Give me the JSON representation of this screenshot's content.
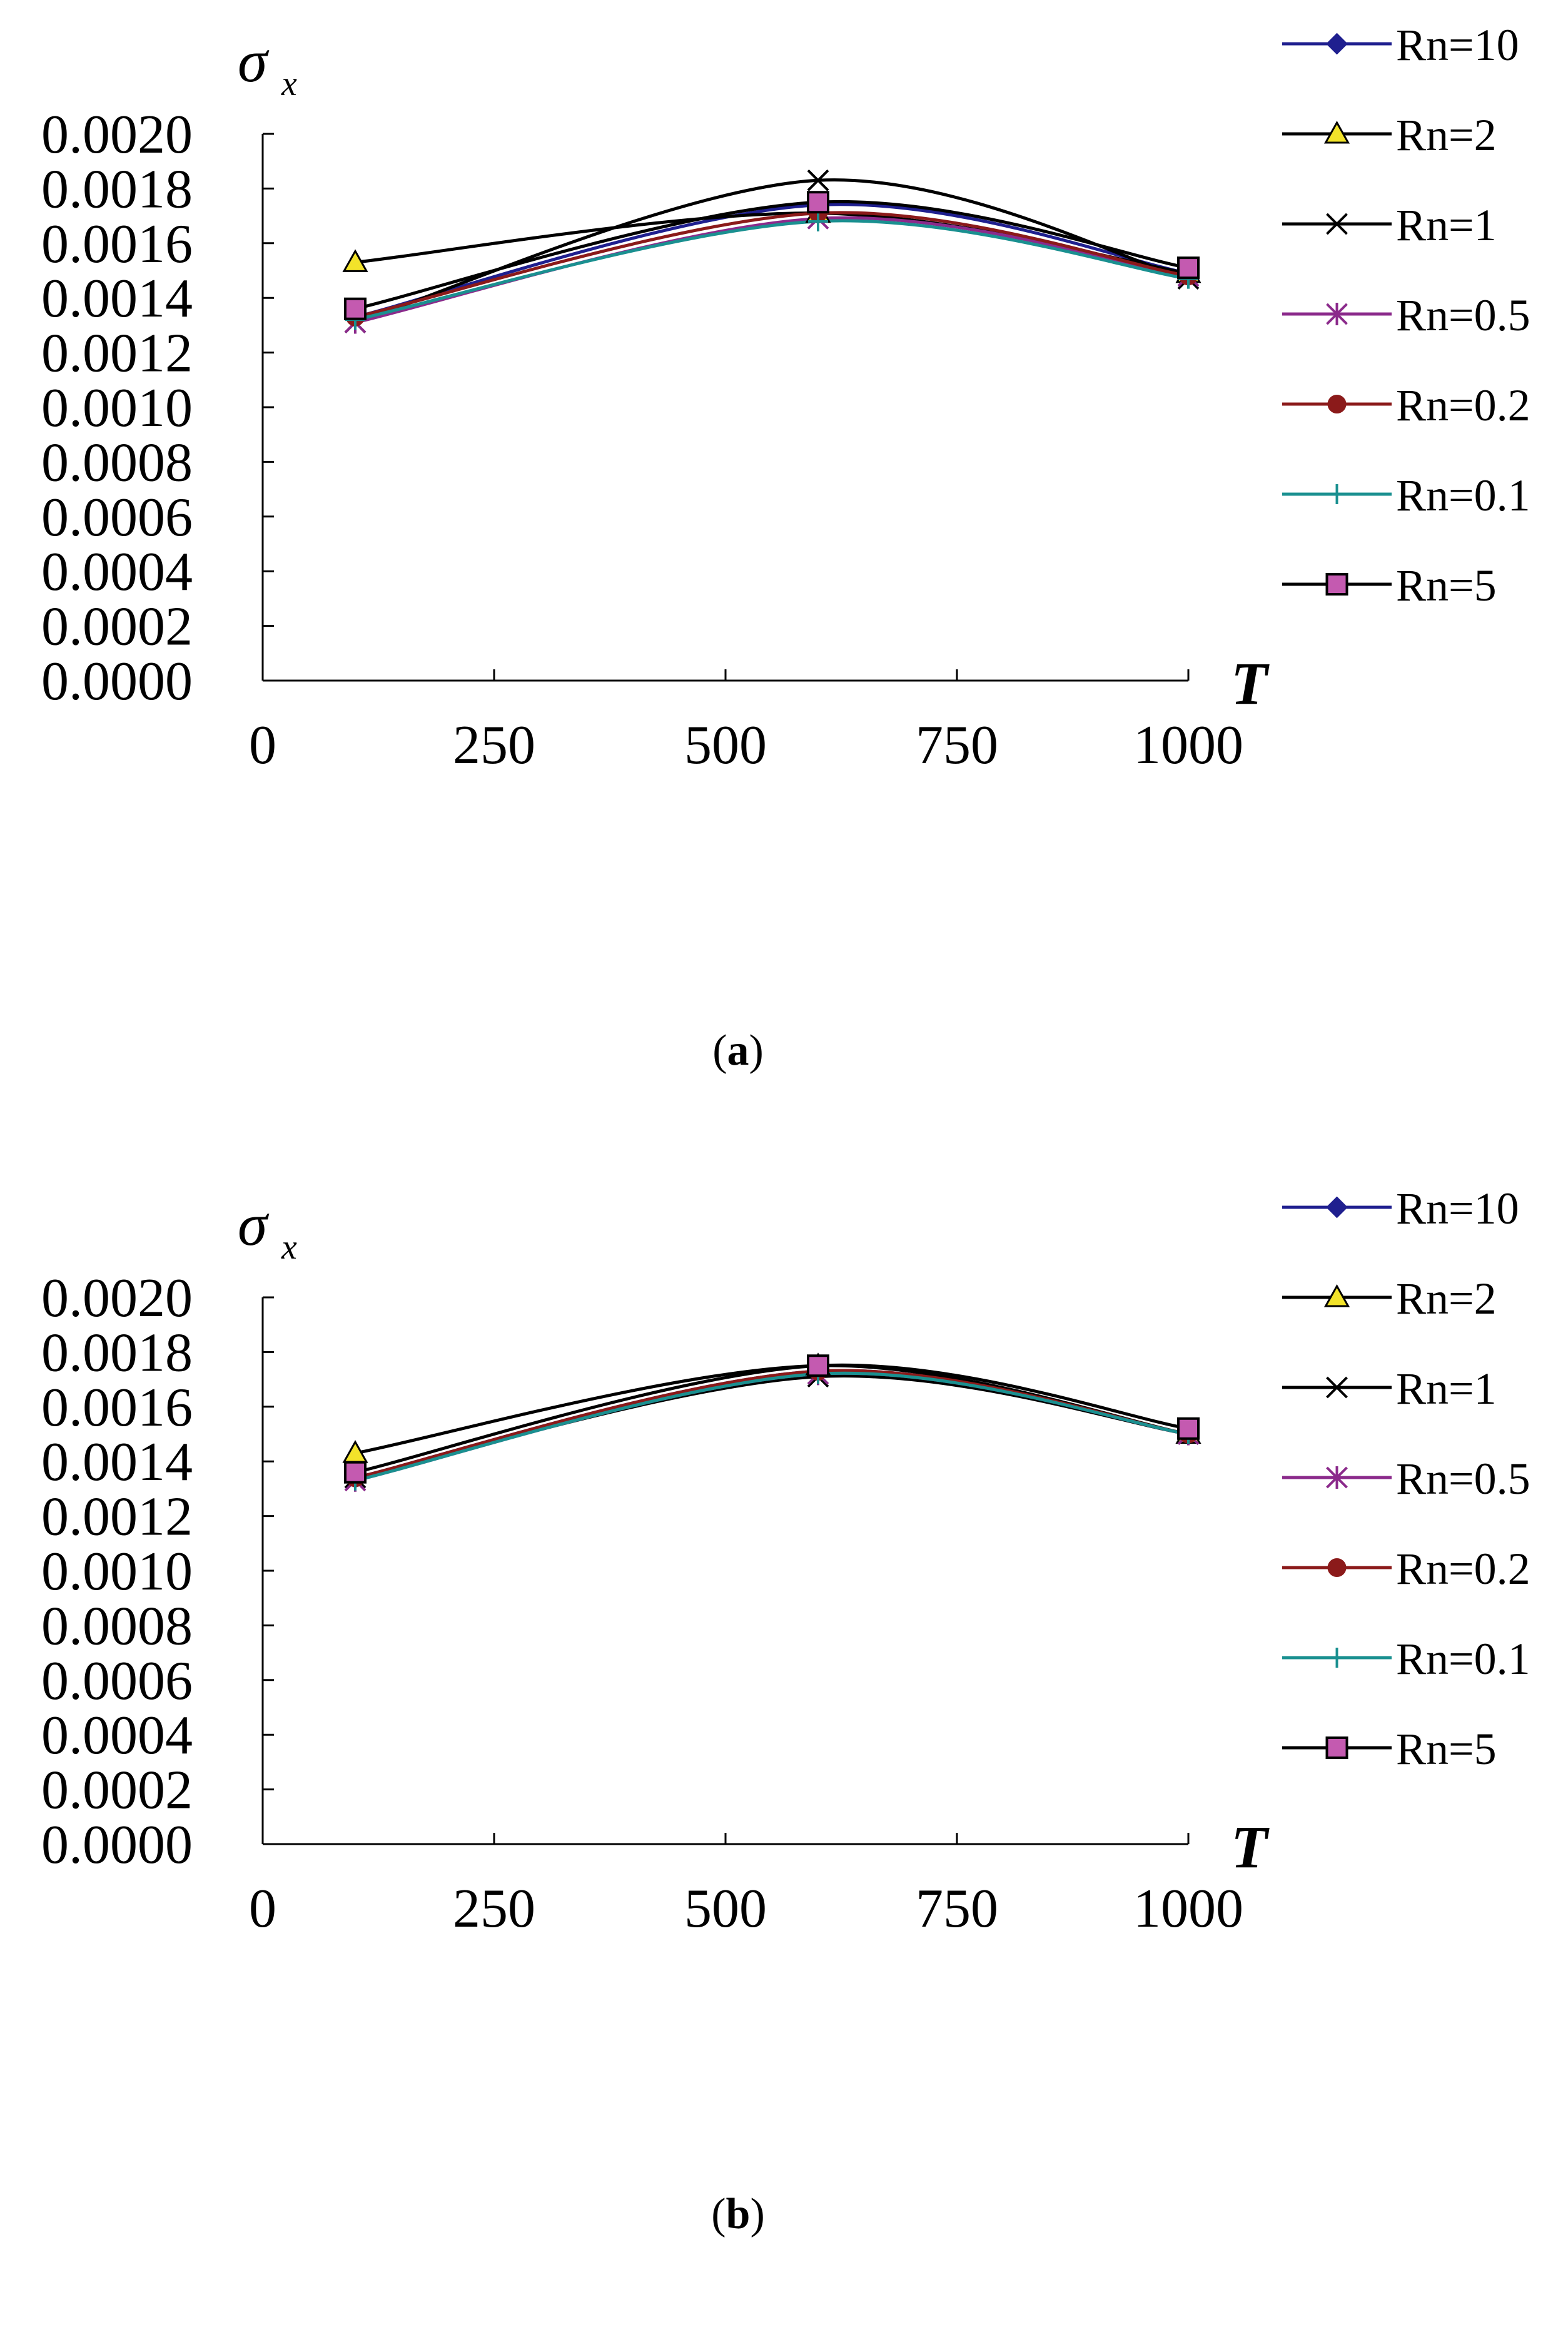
{
  "chart_data": [
    {
      "type": "line",
      "caption": "a",
      "ylabel": "σ",
      "ylabel_sub": "x",
      "xlabel": "T",
      "x": [
        100,
        600,
        1000
      ],
      "xlim": [
        0,
        1000
      ],
      "ylim": [
        0,
        0.002
      ],
      "xticks": [
        "0",
        "250",
        "500",
        "750",
        "1000"
      ],
      "yticks": [
        "0.0000",
        "0.0002",
        "0.0004",
        "0.0006",
        "0.0008",
        "0.0010",
        "0.0012",
        "0.0014",
        "0.0016",
        "0.0018",
        "0.0020"
      ],
      "grid": false,
      "legend_position": "right",
      "series": [
        {
          "name": "Rn=10",
          "values": [
            0.00133,
            0.00174,
            0.00149
          ],
          "color": "#1f1f8f",
          "marker": "diamond"
        },
        {
          "name": "Rn=2",
          "values": [
            0.00153,
            0.00171,
            0.00149
          ],
          "color": "#000000",
          "marker": "triangle",
          "marker_color": "#f2e32a"
        },
        {
          "name": "Rn=1",
          "values": [
            0.00131,
            0.00183,
            0.00147
          ],
          "color": "#000000",
          "marker": "x"
        },
        {
          "name": "Rn=0.5",
          "values": [
            0.00131,
            0.00169,
            0.00148
          ],
          "color": "#8b2a8b",
          "marker": "star"
        },
        {
          "name": "Rn=0.2",
          "values": [
            0.00133,
            0.00171,
            0.00148
          ],
          "color": "#8b1a1a",
          "marker": "circle"
        },
        {
          "name": "Rn=0.1",
          "values": [
            0.00132,
            0.00168,
            0.00147
          ],
          "color": "#1a9090",
          "marker": "plus"
        },
        {
          "name": "Rn=5",
          "values": [
            0.00136,
            0.00175,
            0.00151
          ],
          "color": "#000000",
          "marker": "square",
          "marker_color": "#c45ab0"
        }
      ]
    },
    {
      "type": "line",
      "caption": "b",
      "ylabel": "σ",
      "ylabel_sub": "x",
      "xlabel": "T",
      "x": [
        100,
        600,
        1000
      ],
      "xlim": [
        0,
        1000
      ],
      "ylim": [
        0,
        0.002
      ],
      "xticks": [
        "0",
        "250",
        "500",
        "750",
        "1000"
      ],
      "yticks": [
        "0.0000",
        "0.0002",
        "0.0004",
        "0.0006",
        "0.0008",
        "0.0010",
        "0.0012",
        "0.0014",
        "0.0016",
        "0.0018",
        "0.0020"
      ],
      "grid": false,
      "legend_position": "right",
      "series": [
        {
          "name": "Rn=10",
          "values": [
            0.00134,
            0.00173,
            0.0015
          ],
          "color": "#1f1f8f",
          "marker": "diamond"
        },
        {
          "name": "Rn=2",
          "values": [
            0.00143,
            0.00175,
            0.0015
          ],
          "color": "#000000",
          "marker": "triangle",
          "marker_color": "#f2e32a"
        },
        {
          "name": "Rn=1",
          "values": [
            0.00134,
            0.00171,
            0.0015
          ],
          "color": "#000000",
          "marker": "x"
        },
        {
          "name": "Rn=0.5",
          "values": [
            0.00133,
            0.00172,
            0.0015
          ],
          "color": "#8b2a8b",
          "marker": "star"
        },
        {
          "name": "Rn=0.2",
          "values": [
            0.00134,
            0.00173,
            0.0015
          ],
          "color": "#8b1a1a",
          "marker": "circle"
        },
        {
          "name": "Rn=0.1",
          "values": [
            0.00133,
            0.00172,
            0.0015
          ],
          "color": "#1a9090",
          "marker": "plus"
        },
        {
          "name": "Rn=5",
          "values": [
            0.00136,
            0.00175,
            0.00152
          ],
          "color": "#000000",
          "marker": "square",
          "marker_color": "#c45ab0"
        }
      ]
    }
  ]
}
